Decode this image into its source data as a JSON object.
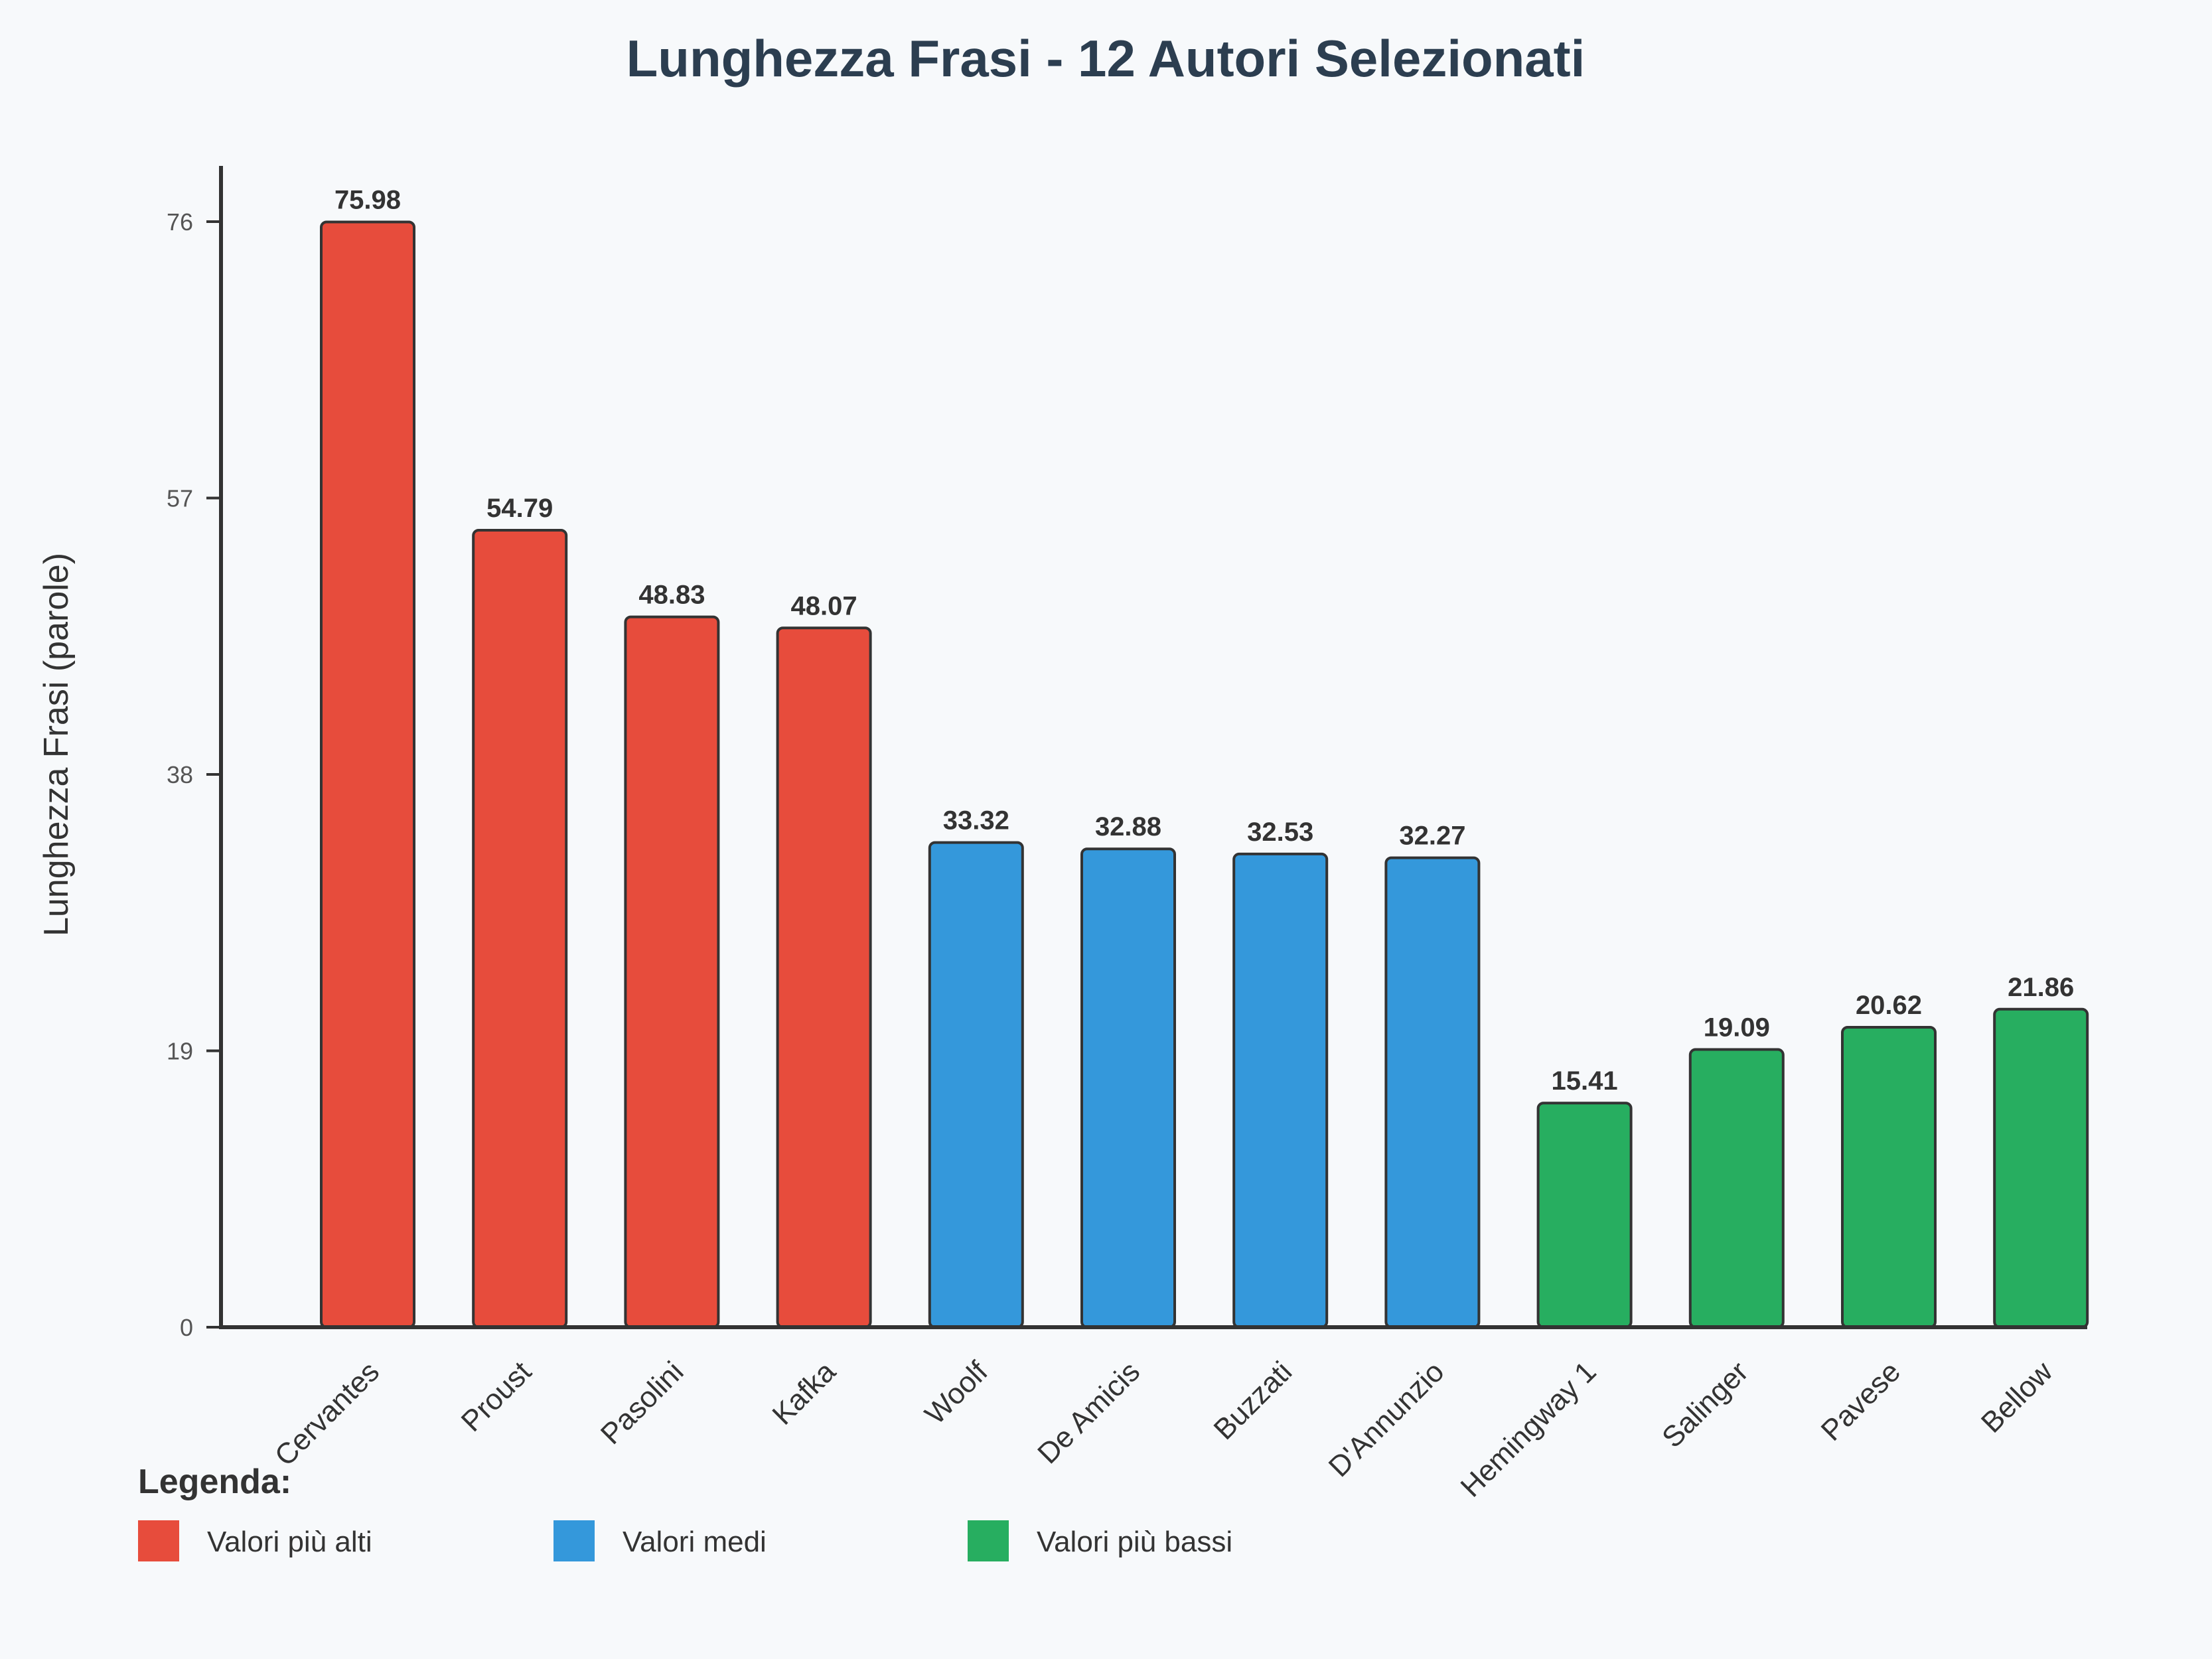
{
  "chart_data": {
    "type": "bar",
    "title": "Lunghezza Frasi - 12 Autori Selezionati",
    "xlabel": "",
    "ylabel": "Lunghezza Frasi (parole)",
    "ylim": [
      0,
      80
    ],
    "yticks": [
      0,
      19,
      38,
      57,
      76
    ],
    "categories": [
      "Cervantes",
      "Proust",
      "Pasolini",
      "Kafka",
      "Woolf",
      "De Amicis",
      "Buzzati",
      "D'Annunzio",
      "Hemingway 1",
      "Salinger",
      "Pavese",
      "Bellow"
    ],
    "values": [
      75.98,
      54.79,
      48.83,
      48.07,
      33.32,
      32.88,
      32.53,
      32.27,
      15.41,
      19.09,
      20.62,
      21.86
    ],
    "value_labels": [
      "75.98",
      "54.79",
      "48.83",
      "48.07",
      "33.32",
      "32.88",
      "32.53",
      "32.27",
      "15.41",
      "19.09",
      "20.62",
      "21.86"
    ],
    "groups": [
      "high",
      "high",
      "high",
      "high",
      "mid",
      "mid",
      "mid",
      "mid",
      "low",
      "low",
      "low",
      "low"
    ],
    "colors": {
      "high": "#e74c3c",
      "mid": "#3498db",
      "low": "#27ae60"
    },
    "grid": false,
    "legend": {
      "title": "Legenda:",
      "placement": "bottom-left",
      "items": [
        {
          "label": "Valori più alti",
          "group": "high"
        },
        {
          "label": "Valori medi",
          "group": "mid"
        },
        {
          "label": "Valori più bassi",
          "group": "low"
        }
      ]
    }
  }
}
